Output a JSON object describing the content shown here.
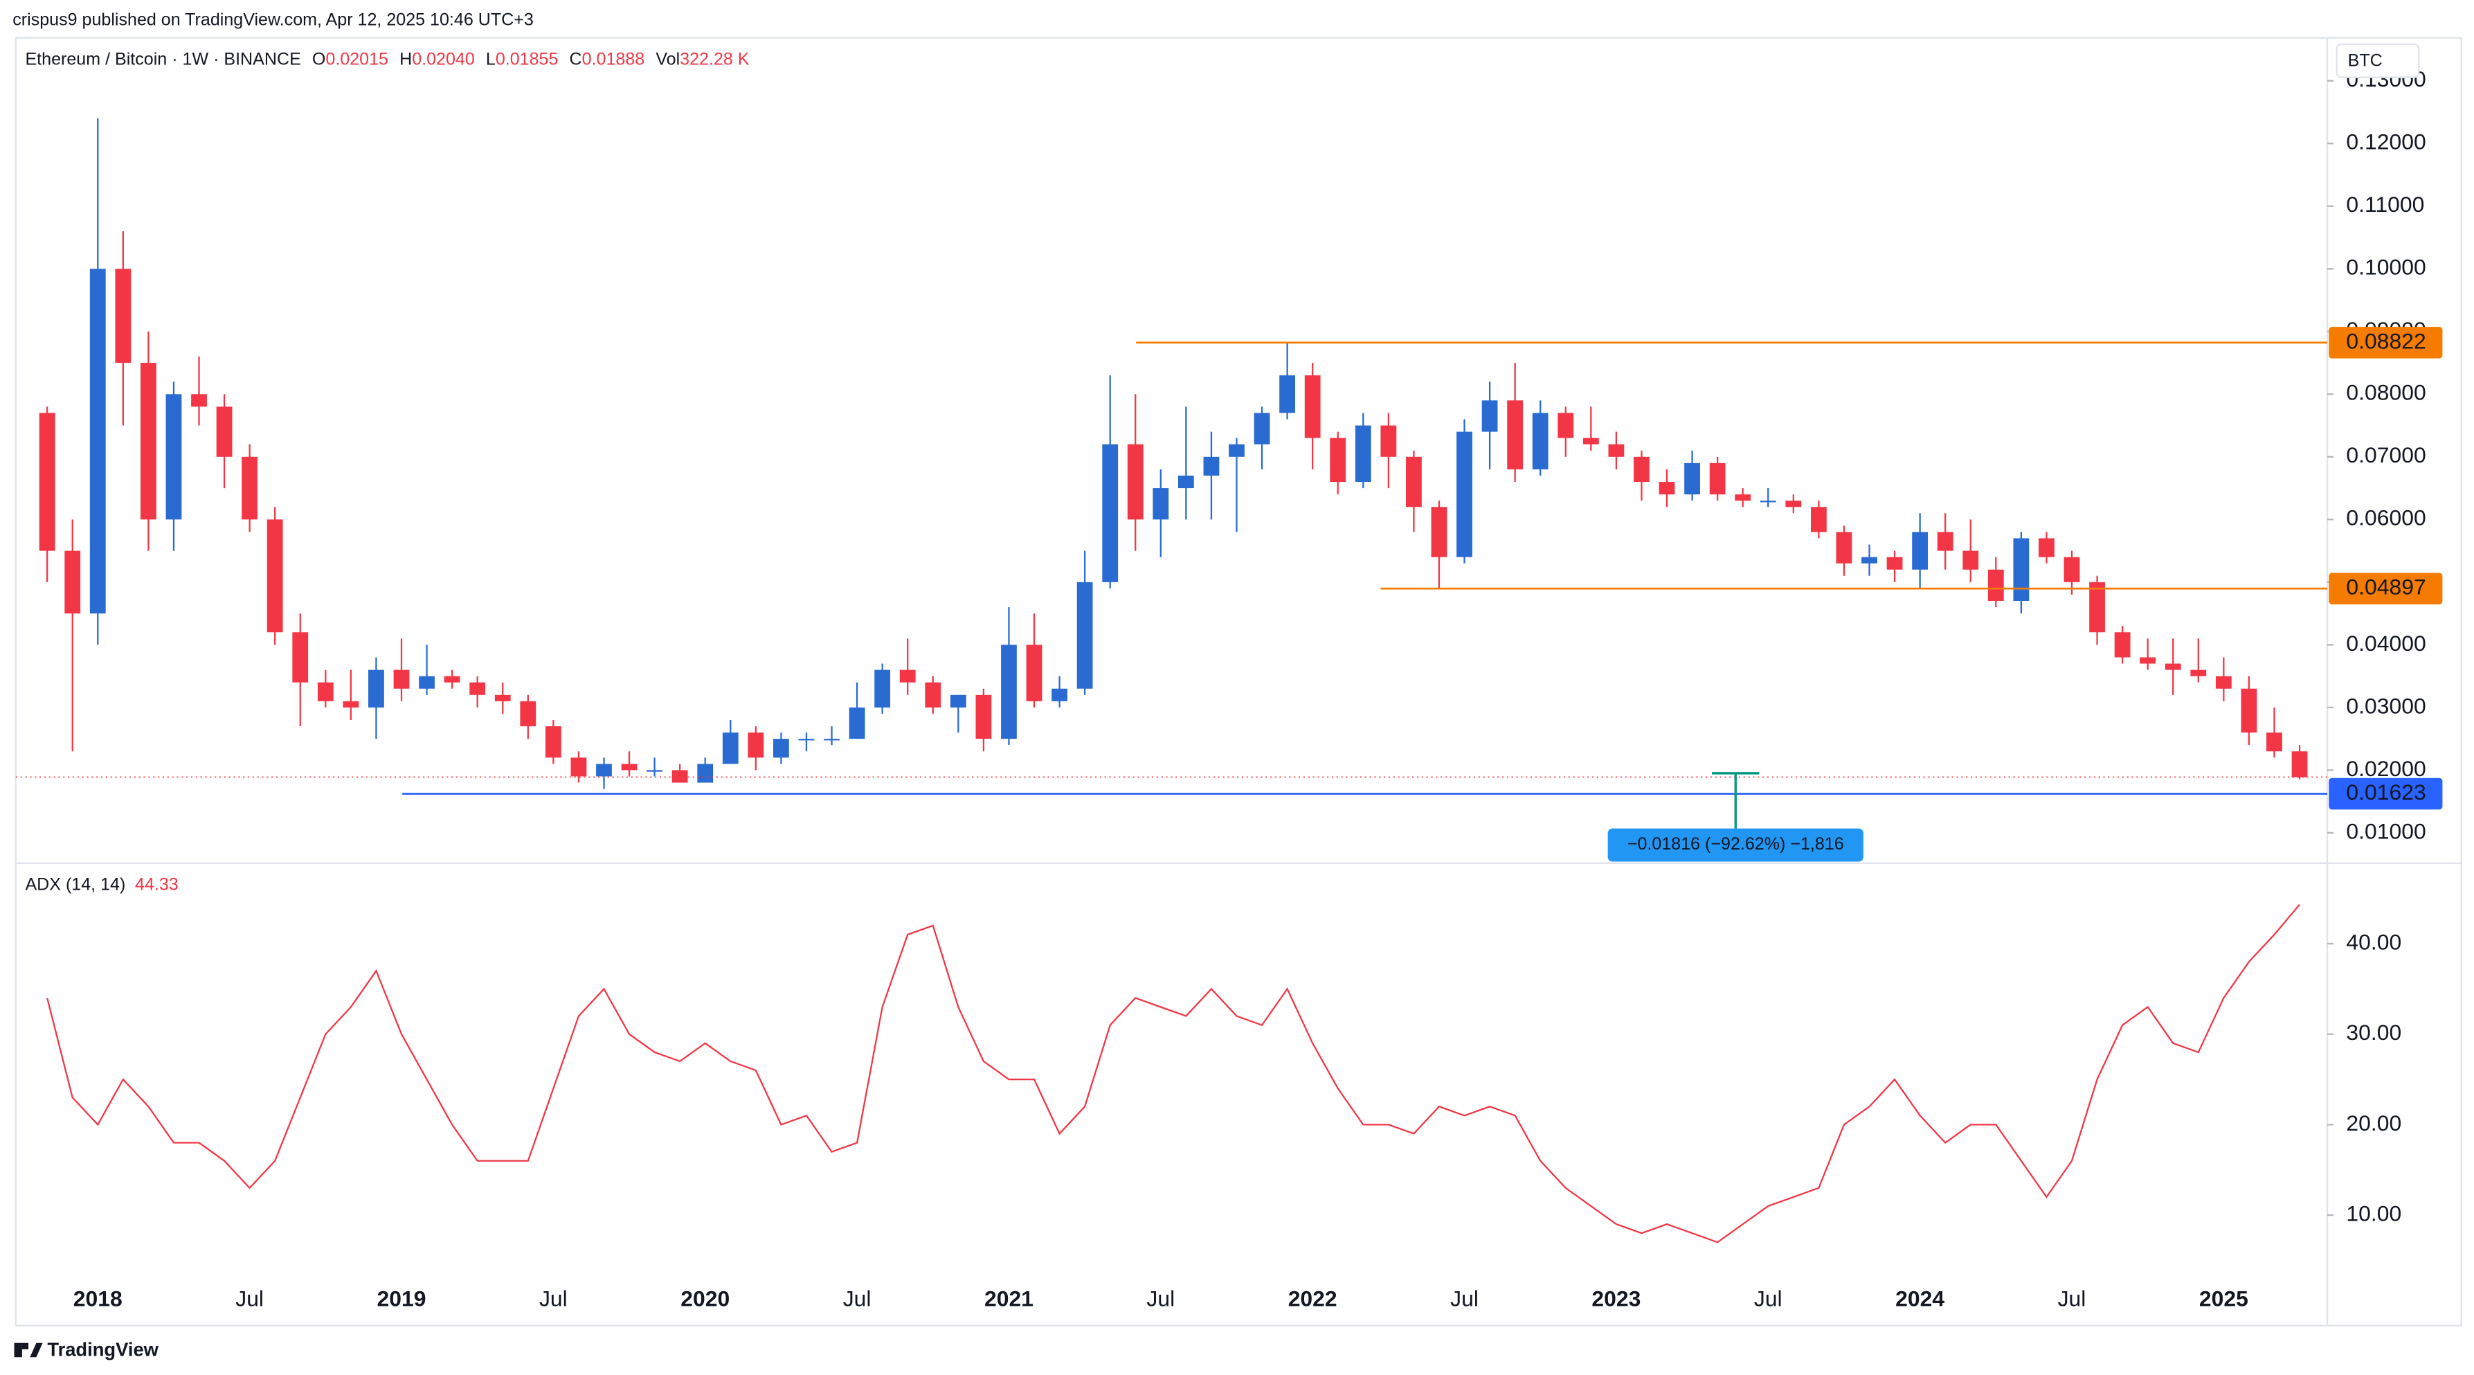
{
  "header": {
    "published": "crispus9 published on TradingView.com, Apr 12, 2025 10:46 UTC+3",
    "symbol": "Ethereum / Bitcoin · 1W · BINANCE",
    "ohlc_letters": [
      "O",
      "H",
      "L",
      "C"
    ],
    "ohlc": [
      0.02015,
      {
        "value": 0.0204,
        "label": "0.02040"
      },
      0.01855,
      0.01888
    ],
    "volume_letter": "Vol",
    "volume": {
      "value": 322280,
      "label": "322.28 K"
    },
    "currency": "BTC"
  },
  "chart_data": [
    {
      "type": "candlestick",
      "categories": [
        null,
        null,
        "2018",
        null,
        null,
        null,
        null,
        null,
        "Jul",
        null,
        null,
        null,
        null,
        null,
        "2019",
        null,
        null,
        null,
        null,
        null,
        "Jul",
        null,
        null,
        null,
        null,
        null,
        "2020",
        null,
        null,
        null,
        null,
        null,
        "Jul",
        null,
        null,
        null,
        null,
        null,
        "2021",
        null,
        null,
        null,
        null,
        null,
        "Jul",
        null,
        null,
        null,
        null,
        null,
        "2022",
        null,
        null,
        null,
        null,
        null,
        "Jul",
        null,
        null,
        null,
        null,
        null,
        "2023",
        null,
        null,
        null,
        null,
        null,
        "Jul",
        null,
        null,
        null,
        null,
        null,
        "2024",
        null,
        null,
        null,
        null,
        null,
        "Jul",
        null,
        null,
        null,
        null,
        null,
        "2025",
        null,
        null,
        null
      ],
      "open": [
        0.077,
        0.055,
        0.045,
        0.1,
        0.085,
        0.06,
        0.08,
        0.078,
        0.07,
        0.06,
        0.042,
        0.034,
        0.031,
        0.03,
        0.036,
        0.033,
        0.035,
        0.034,
        0.032,
        0.031,
        0.027,
        0.022,
        0.019,
        0.021,
        0.02,
        0.02,
        0.018,
        0.021,
        0.026,
        0.022,
        0.025,
        0.025,
        0.025,
        0.03,
        0.036,
        0.034,
        0.03,
        0.032,
        0.025,
        0.04,
        0.031,
        0.033,
        0.05,
        0.072,
        0.06,
        0.065,
        0.067,
        0.07,
        0.072,
        0.077,
        0.083,
        0.073,
        0.066,
        0.075,
        0.07,
        0.062,
        0.054,
        0.074,
        0.079,
        0.068,
        0.077,
        0.073,
        0.072,
        0.07,
        0.066,
        0.064,
        0.069,
        0.064,
        0.063,
        0.063,
        0.062,
        0.058,
        0.053,
        0.054,
        0.052,
        0.058,
        0.055,
        0.052,
        0.047,
        0.057,
        0.054,
        0.05,
        0.042,
        0.038,
        0.037,
        0.036,
        0.035,
        0.033,
        0.026,
        0.023
      ],
      "high": [
        0.078,
        0.06,
        0.124,
        0.106,
        0.09,
        0.082,
        0.086,
        0.08,
        0.072,
        0.062,
        0.045,
        0.036,
        0.036,
        0.038,
        0.041,
        0.04,
        0.036,
        0.035,
        0.034,
        0.032,
        0.028,
        0.023,
        0.022,
        0.023,
        0.022,
        0.021,
        0.022,
        0.028,
        0.027,
        0.026,
        0.026,
        0.027,
        0.034,
        0.037,
        0.041,
        0.035,
        0.032,
        0.033,
        0.046,
        0.045,
        0.035,
        0.055,
        0.083,
        0.08,
        0.068,
        0.078,
        0.074,
        0.073,
        0.078,
        0.08822,
        0.085,
        0.074,
        0.077,
        0.077,
        0.071,
        0.063,
        0.076,
        0.082,
        0.085,
        0.079,
        0.078,
        0.078,
        0.074,
        0.071,
        0.068,
        0.071,
        0.07,
        0.065,
        0.065,
        0.064,
        0.063,
        0.059,
        0.056,
        0.055,
        0.061,
        0.061,
        0.06,
        0.054,
        0.058,
        0.058,
        0.055,
        0.051,
        0.043,
        0.041,
        0.041,
        0.041,
        0.038,
        0.035,
        0.03,
        0.024
      ],
      "low": [
        0.05,
        0.023,
        0.04,
        0.075,
        0.055,
        0.055,
        0.075,
        0.065,
        0.058,
        0.04,
        0.027,
        0.03,
        0.028,
        0.025,
        0.031,
        0.032,
        0.033,
        0.03,
        0.029,
        0.025,
        0.021,
        0.018,
        0.017,
        0.019,
        0.019,
        0.018,
        0.018,
        0.021,
        0.02,
        0.021,
        0.023,
        0.024,
        0.025,
        0.029,
        0.032,
        0.029,
        0.026,
        0.023,
        0.024,
        0.03,
        0.03,
        0.032,
        0.049,
        0.055,
        0.054,
        0.06,
        0.06,
        0.058,
        0.068,
        0.076,
        0.068,
        0.064,
        0.065,
        0.065,
        0.058,
        0.04897,
        0.053,
        0.068,
        0.066,
        0.067,
        0.07,
        0.071,
        0.068,
        0.063,
        0.062,
        0.063,
        0.063,
        0.062,
        0.062,
        0.061,
        0.057,
        0.051,
        0.051,
        0.05,
        0.049,
        0.052,
        0.05,
        0.046,
        0.045,
        0.053,
        0.048,
        0.04,
        0.037,
        0.036,
        0.032,
        0.034,
        0.031,
        0.024,
        0.022,
        0.01855
      ],
      "close": [
        0.055,
        0.045,
        0.1,
        0.085,
        0.06,
        0.08,
        0.078,
        0.07,
        0.06,
        0.042,
        0.034,
        0.031,
        0.03,
        0.036,
        0.033,
        0.035,
        0.034,
        0.032,
        0.031,
        0.027,
        0.022,
        0.019,
        0.021,
        0.02,
        0.02,
        0.018,
        0.021,
        0.026,
        0.022,
        0.025,
        0.025,
        0.025,
        0.03,
        0.036,
        0.034,
        0.03,
        0.032,
        0.025,
        0.04,
        0.031,
        0.033,
        0.05,
        0.072,
        0.06,
        0.065,
        0.067,
        0.07,
        0.072,
        0.077,
        0.083,
        0.073,
        0.066,
        0.075,
        0.07,
        0.062,
        0.054,
        0.074,
        0.079,
        0.068,
        0.077,
        0.073,
        0.072,
        0.07,
        0.066,
        0.064,
        0.069,
        0.064,
        0.063,
        0.063,
        0.062,
        0.058,
        0.053,
        0.054,
        0.052,
        0.058,
        0.055,
        0.052,
        0.047,
        0.057,
        0.054,
        0.05,
        0.042,
        0.038,
        0.037,
        0.036,
        0.035,
        0.033,
        0.026,
        0.023,
        0.01888
      ],
      "up_color": "#2a6bd1",
      "down_color": "#f23645",
      "ylim": [
        0.0054,
        0.1366
      ],
      "yticks": [
        {
          "value": 0.01,
          "label": "0.01000"
        },
        {
          "value": 0.02,
          "label": "0.02000"
        },
        {
          "value": 0.03,
          "label": "0.03000"
        },
        {
          "value": 0.04,
          "label": "0.04000"
        },
        {
          "value": 0.05,
          "label": "0.05000"
        },
        {
          "value": 0.06,
          "label": "0.06000"
        },
        {
          "value": 0.07,
          "label": "0.07000"
        },
        {
          "value": 0.08,
          "label": "0.08000"
        },
        {
          "value": 0.09,
          "label": "0.09000"
        },
        {
          "value": 0.1,
          "label": "0.10000"
        },
        {
          "value": 0.11,
          "label": "0.11000"
        },
        {
          "value": 0.12,
          "label": "0.12000"
        },
        {
          "value": 0.13,
          "label": "0.13000"
        }
      ],
      "grid": false,
      "levels": [
        {
          "value": 0.08822,
          "color": "#f57c00"
        },
        {
          "value": 0.04897,
          "color": "#f57c00"
        },
        {
          "value": 0.01623,
          "color": "#2962ff"
        }
      ],
      "annotation": "−0.01816 (−92.62%) −1,816"
    },
    {
      "type": "line",
      "title": "ADX (14, 14)",
      "values": [
        34,
        23,
        20,
        25,
        22,
        18,
        18,
        16,
        13,
        16,
        23,
        30,
        33,
        37,
        30,
        25,
        20,
        16,
        16,
        16,
        24,
        32,
        35,
        30,
        28,
        27,
        29,
        27,
        26,
        20,
        21,
        17,
        18,
        33,
        41,
        42,
        33,
        27,
        25,
        25,
        19,
        22,
        31,
        34,
        33,
        32,
        35,
        32,
        31,
        35,
        29,
        24,
        20,
        20,
        19,
        22,
        21,
        22,
        21,
        16,
        13,
        11,
        9,
        8,
        9,
        8,
        7,
        9,
        11,
        12,
        13,
        20,
        22,
        25,
        21,
        18,
        20,
        20,
        16,
        12,
        16,
        25,
        31,
        33,
        29,
        28,
        34,
        38,
        41,
        44.33
      ],
      "color": "#f23645",
      "ylim": [
        2.15,
        48.02
      ],
      "yticks": [
        {
          "value": 10,
          "label": "10.00"
        },
        {
          "value": 20,
          "label": "20.00"
        },
        {
          "value": 30,
          "label": "30.00"
        },
        {
          "value": 40,
          "label": "40.00"
        }
      ],
      "grid": false
    }
  ],
  "footer": {
    "brand": "TradingView"
  }
}
